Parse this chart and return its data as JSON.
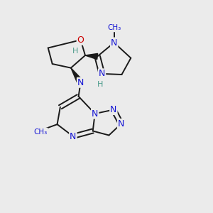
{
  "bg_color": "#ebebeb",
  "bond_color": "#1a1a1a",
  "n_color": "#1414d4",
  "o_color": "#cc0000",
  "h_color": "#4a9a8a",
  "figsize": [
    3.0,
    3.0
  ],
  "dpi": 100,
  "xlim": [
    0.15,
    0.85
  ],
  "ylim": [
    0.18,
    0.98
  ]
}
